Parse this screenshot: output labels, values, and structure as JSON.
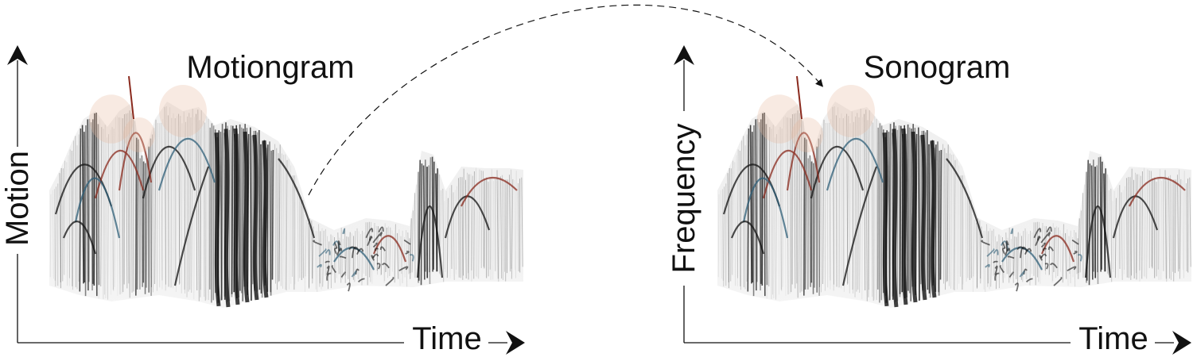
{
  "panels": [
    {
      "id": "left",
      "title": "Motiongram",
      "y_axis_label": "Motion",
      "x_axis_label": "Time"
    },
    {
      "id": "right",
      "title": "Sonogram",
      "y_axis_label": "Frequency",
      "x_axis_label": "Time"
    }
  ],
  "colors": {
    "ink": "#111111",
    "accent_red": "#8a2a1e",
    "accent_blue": "#2f5f78",
    "accent_peach": "#e8b9a0",
    "background": "#ffffff"
  },
  "connector": {
    "style": "dashed-arc-arrow"
  }
}
